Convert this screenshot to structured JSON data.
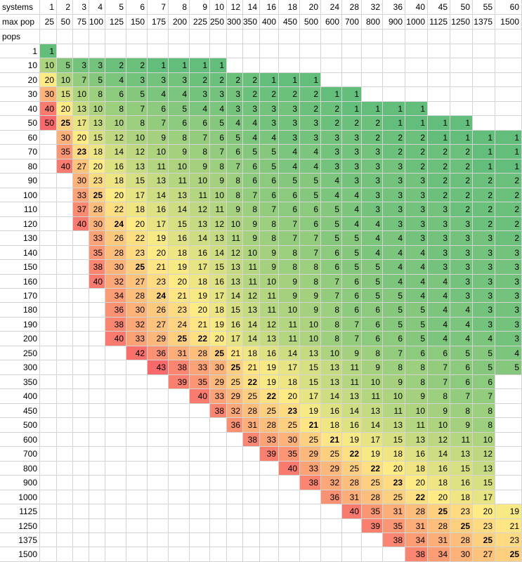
{
  "header": {
    "systems_label": "systems",
    "maxpop_label": "max pop",
    "pops_label": "pops",
    "systems": [
      "1",
      "2",
      "3",
      "4",
      "5",
      "6",
      "7",
      "8",
      "9",
      "10",
      "12",
      "14",
      "16",
      "18",
      "20",
      "24",
      "28",
      "32",
      "36",
      "40",
      "45",
      "50",
      "55",
      "60"
    ],
    "maxpop": [
      "25",
      "50",
      "75",
      "100",
      "125",
      "150",
      "175",
      "200",
      "225",
      "250",
      "300",
      "350",
      "400",
      "450",
      "500",
      "600",
      "700",
      "800",
      "900",
      "1000",
      "1125",
      "1250",
      "1375",
      "1500"
    ]
  },
  "pops": [
    "1",
    "10",
    "20",
    "30",
    "40",
    "50",
    "60",
    "70",
    "80",
    "90",
    "100",
    "110",
    "120",
    "130",
    "140",
    "150",
    "160",
    "170",
    "180",
    "190",
    "200",
    "250",
    "300",
    "350",
    "400",
    "450",
    "500",
    "600",
    "700",
    "800",
    "900",
    "1000",
    "1125",
    "1250",
    "1375",
    "1500"
  ],
  "grid": [
    {
      "s": 0,
      "v": [
        "1"
      ]
    },
    {
      "s": 0,
      "v": [
        "10",
        "5",
        "3",
        "3",
        "2",
        "2",
        "1",
        "1",
        "1",
        "1"
      ]
    },
    {
      "s": 0,
      "v": [
        "20",
        "10",
        "7",
        "5",
        "4",
        "3",
        "3",
        "3",
        "2",
        "2",
        "2",
        "2",
        "1",
        "1",
        "1"
      ]
    },
    {
      "s": 0,
      "v": [
        "30",
        "15",
        "10",
        "8",
        "6",
        "5",
        "4",
        "4",
        "3",
        "3",
        "3",
        "2",
        "2",
        "2",
        "2",
        "1",
        "1"
      ]
    },
    {
      "s": 0,
      "v": [
        "40",
        "20",
        "13",
        "10",
        "8",
        "7",
        "6",
        "5",
        "4",
        "4",
        "3",
        "3",
        "3",
        "3",
        "2",
        "2",
        "1",
        "1",
        "1",
        "1"
      ]
    },
    {
      "s": 0,
      "v": [
        "50",
        "25",
        "17",
        "13",
        "10",
        "8",
        "7",
        "6",
        "6",
        "5",
        "4",
        "4",
        "3",
        "3",
        "3",
        "2",
        "2",
        "2",
        "1",
        "1",
        "1",
        "1"
      ]
    },
    {
      "s": 1,
      "v": [
        "30",
        "20",
        "15",
        "12",
        "10",
        "9",
        "8",
        "7",
        "6",
        "5",
        "4",
        "4",
        "3",
        "3",
        "3",
        "3",
        "2",
        "2",
        "2",
        "1",
        "1",
        "1",
        "1"
      ]
    },
    {
      "s": 1,
      "v": [
        "35",
        "23",
        "18",
        "14",
        "12",
        "10",
        "9",
        "8",
        "7",
        "6",
        "5",
        "5",
        "4",
        "4",
        "3",
        "3",
        "3",
        "2",
        "2",
        "2",
        "2",
        "1",
        "1"
      ]
    },
    {
      "s": 1,
      "v": [
        "40",
        "27",
        "20",
        "16",
        "13",
        "11",
        "10",
        "9",
        "8",
        "7",
        "6",
        "5",
        "4",
        "4",
        "3",
        "3",
        "3",
        "3",
        "2",
        "2",
        "2",
        "1",
        "1"
      ]
    },
    {
      "s": 2,
      "v": [
        "30",
        "23",
        "18",
        "15",
        "13",
        "11",
        "10",
        "9",
        "8",
        "6",
        "6",
        "5",
        "5",
        "4",
        "3",
        "3",
        "3",
        "3",
        "2",
        "2",
        "2",
        "2"
      ]
    },
    {
      "s": 2,
      "v": [
        "33",
        "25",
        "20",
        "17",
        "14",
        "13",
        "11",
        "10",
        "8",
        "7",
        "6",
        "6",
        "5",
        "4",
        "4",
        "3",
        "3",
        "3",
        "2",
        "2",
        "2",
        "2"
      ]
    },
    {
      "s": 2,
      "v": [
        "37",
        "28",
        "22",
        "18",
        "16",
        "14",
        "12",
        "11",
        "9",
        "8",
        "7",
        "6",
        "6",
        "5",
        "4",
        "3",
        "3",
        "3",
        "3",
        "2",
        "2",
        "2"
      ]
    },
    {
      "s": 2,
      "v": [
        "40",
        "30",
        "24",
        "20",
        "17",
        "15",
        "13",
        "12",
        "10",
        "9",
        "8",
        "7",
        "6",
        "5",
        "4",
        "4",
        "3",
        "3",
        "3",
        "3",
        "2",
        "2"
      ]
    },
    {
      "s": 3,
      "v": [
        "33",
        "26",
        "22",
        "19",
        "16",
        "14",
        "13",
        "11",
        "9",
        "8",
        "7",
        "7",
        "5",
        "5",
        "4",
        "4",
        "3",
        "3",
        "3",
        "3",
        "2"
      ]
    },
    {
      "s": 3,
      "v": [
        "35",
        "28",
        "23",
        "20",
        "18",
        "16",
        "14",
        "12",
        "10",
        "9",
        "8",
        "7",
        "6",
        "5",
        "4",
        "4",
        "4",
        "3",
        "3",
        "3",
        "3"
      ]
    },
    {
      "s": 3,
      "v": [
        "38",
        "30",
        "25",
        "21",
        "19",
        "17",
        "15",
        "13",
        "11",
        "9",
        "8",
        "8",
        "6",
        "5",
        "5",
        "4",
        "4",
        "3",
        "3",
        "3",
        "3"
      ]
    },
    {
      "s": 3,
      "v": [
        "40",
        "32",
        "27",
        "23",
        "20",
        "18",
        "16",
        "13",
        "11",
        "10",
        "9",
        "8",
        "7",
        "6",
        "5",
        "4",
        "4",
        "4",
        "3",
        "3",
        "3"
      ]
    },
    {
      "s": 4,
      "v": [
        "34",
        "28",
        "24",
        "21",
        "19",
        "17",
        "14",
        "12",
        "11",
        "9",
        "9",
        "7",
        "6",
        "5",
        "5",
        "4",
        "4",
        "3",
        "3",
        "3"
      ]
    },
    {
      "s": 4,
      "v": [
        "36",
        "30",
        "26",
        "23",
        "20",
        "18",
        "15",
        "13",
        "11",
        "10",
        "9",
        "8",
        "6",
        "6",
        "5",
        "5",
        "4",
        "4",
        "3",
        "3"
      ]
    },
    {
      "s": 4,
      "v": [
        "38",
        "32",
        "27",
        "24",
        "21",
        "19",
        "16",
        "14",
        "12",
        "11",
        "10",
        "8",
        "7",
        "6",
        "5",
        "5",
        "4",
        "4",
        "3",
        "3"
      ]
    },
    {
      "s": 4,
      "v": [
        "40",
        "33",
        "29",
        "25",
        "22",
        "20",
        "17",
        "14",
        "13",
        "11",
        "10",
        "8",
        "7",
        "6",
        "6",
        "5",
        "4",
        "4",
        "4",
        "3"
      ]
    },
    {
      "s": 5,
      "v": [
        "42",
        "36",
        "31",
        "28",
        "25",
        "21",
        "18",
        "16",
        "14",
        "13",
        "10",
        "9",
        "8",
        "7",
        "6",
        "6",
        "5",
        "5",
        "4"
      ]
    },
    {
      "s": 6,
      "v": [
        "43",
        "38",
        "33",
        "30",
        "25",
        "21",
        "19",
        "17",
        "15",
        "13",
        "11",
        "9",
        "8",
        "8",
        "7",
        "6",
        "5",
        "5"
      ]
    },
    {
      "s": 7,
      "v": [
        "39",
        "35",
        "29",
        "25",
        "22",
        "19",
        "18",
        "15",
        "13",
        "11",
        "10",
        "9",
        "8",
        "7",
        "6",
        "6"
      ]
    },
    {
      "s": 8,
      "v": [
        "40",
        "33",
        "29",
        "25",
        "22",
        "20",
        "17",
        "14",
        "13",
        "11",
        "10",
        "9",
        "8",
        "7",
        "7"
      ]
    },
    {
      "s": 9,
      "v": [
        "38",
        "32",
        "28",
        "25",
        "23",
        "19",
        "16",
        "14",
        "13",
        "11",
        "10",
        "9",
        "8",
        "8"
      ]
    },
    {
      "s": 10,
      "v": [
        "36",
        "31",
        "28",
        "25",
        "21",
        "18",
        "16",
        "14",
        "13",
        "11",
        "10",
        "9",
        "8"
      ]
    },
    {
      "s": 11,
      "v": [
        "38",
        "33",
        "30",
        "25",
        "21",
        "19",
        "17",
        "15",
        "13",
        "12",
        "11",
        "10"
      ]
    },
    {
      "s": 12,
      "v": [
        "39",
        "35",
        "29",
        "25",
        "22",
        "19",
        "18",
        "16",
        "14",
        "13",
        "12"
      ]
    },
    {
      "s": 13,
      "v": [
        "40",
        "33",
        "29",
        "25",
        "22",
        "20",
        "18",
        "16",
        "15",
        "13"
      ]
    },
    {
      "s": 14,
      "v": [
        "38",
        "32",
        "28",
        "25",
        "23",
        "20",
        "18",
        "16",
        "15"
      ]
    },
    {
      "s": 15,
      "v": [
        "36",
        "31",
        "28",
        "25",
        "22",
        "20",
        "18",
        "17"
      ]
    },
    {
      "s": 16,
      "v": [
        "40",
        "35",
        "31",
        "28",
        "25",
        "23",
        "20",
        "19"
      ]
    },
    {
      "s": 17,
      "v": [
        "39",
        "35",
        "31",
        "28",
        "25",
        "23",
        "21"
      ]
    },
    {
      "s": 18,
      "v": [
        "38",
        "34",
        "31",
        "28",
        "25",
        "23"
      ]
    },
    {
      "s": 19,
      "v": [
        "38",
        "34",
        "30",
        "27",
        "25"
      ]
    }
  ],
  "bold": [
    [
      5,
      1
    ],
    [
      7,
      2
    ],
    [
      10,
      3
    ],
    [
      12,
      4
    ],
    [
      15,
      5
    ],
    [
      17,
      6
    ],
    [
      20,
      7
    ],
    [
      20,
      8
    ],
    [
      21,
      9
    ],
    [
      22,
      10
    ],
    [
      23,
      11
    ],
    [
      24,
      12
    ],
    [
      25,
      13
    ],
    [
      26,
      14
    ],
    [
      27,
      15
    ],
    [
      28,
      16
    ],
    [
      29,
      17
    ],
    [
      30,
      18
    ],
    [
      31,
      19
    ],
    [
      32,
      20
    ],
    [
      33,
      21
    ],
    [
      34,
      22
    ],
    [
      35,
      23
    ]
  ],
  "colors": {
    "low": "#63be7b",
    "mid": "#ffeb84",
    "high": "#f8696b",
    "grid_line": "#d4d4d4"
  }
}
